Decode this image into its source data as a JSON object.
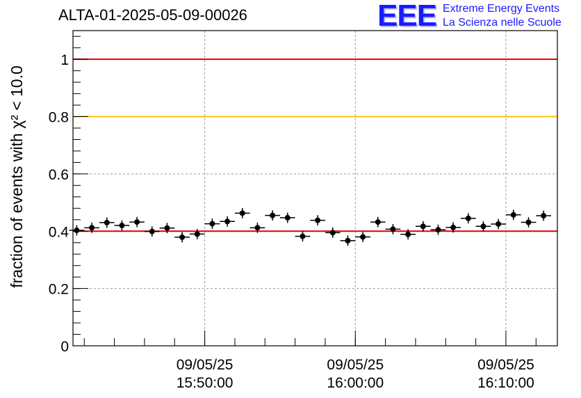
{
  "title": "ALTA-01-2025-05-09-00026",
  "logo": {
    "mark": "EEE",
    "line1": "Extreme Energy Events",
    "line2": "La Scienza nelle Scuole"
  },
  "chart_data": {
    "type": "scatter",
    "title": "ALTA-01-2025-05-09-00026",
    "ylabel": "fraction of events with χ² < 10.0",
    "ylim": [
      0,
      1.1
    ],
    "yticks": [
      0,
      0.2,
      0.4,
      0.6,
      0.8,
      1
    ],
    "ytick_labels": [
      "0",
      "0.2",
      "0.4",
      "0.6",
      "0.8",
      "1"
    ],
    "xlim": [
      "15:41:15",
      "16:13:25"
    ],
    "xtick_major": [
      "15:50:00",
      "16:00:00",
      "16:10:00"
    ],
    "xtick_labels": [
      {
        "date": "09/05/25",
        "time": "15:50:00"
      },
      {
        "date": "09/05/25",
        "time": "16:00:00"
      },
      {
        "date": "09/05/25",
        "time": "16:10:00"
      }
    ],
    "grid": true,
    "reference_lines": [
      {
        "y": 1.0,
        "color": "#e00000"
      },
      {
        "y": 0.8,
        "color": "#ffc400"
      },
      {
        "y": 0.4,
        "color": "#e00000"
      }
    ],
    "marker_color": "#000000",
    "bin_minutes": 1,
    "points": [
      {
        "t": "15:41:30",
        "y": 0.403
      },
      {
        "t": "15:42:30",
        "y": 0.412
      },
      {
        "t": "15:43:30",
        "y": 0.43
      },
      {
        "t": "15:44:30",
        "y": 0.42
      },
      {
        "t": "15:45:30",
        "y": 0.432
      },
      {
        "t": "15:46:30",
        "y": 0.399
      },
      {
        "t": "15:47:30",
        "y": 0.411
      },
      {
        "t": "15:48:30",
        "y": 0.379
      },
      {
        "t": "15:49:30",
        "y": 0.39
      },
      {
        "t": "15:50:30",
        "y": 0.426
      },
      {
        "t": "15:51:30",
        "y": 0.434
      },
      {
        "t": "15:52:30",
        "y": 0.463
      },
      {
        "t": "15:53:30",
        "y": 0.412
      },
      {
        "t": "15:54:30",
        "y": 0.455
      },
      {
        "t": "15:55:30",
        "y": 0.447
      },
      {
        "t": "15:56:30",
        "y": 0.382
      },
      {
        "t": "15:57:30",
        "y": 0.438
      },
      {
        "t": "15:58:30",
        "y": 0.395
      },
      {
        "t": "15:59:30",
        "y": 0.367
      },
      {
        "t": "16:00:30",
        "y": 0.38
      },
      {
        "t": "16:01:30",
        "y": 0.432
      },
      {
        "t": "16:02:30",
        "y": 0.407
      },
      {
        "t": "16:03:30",
        "y": 0.389
      },
      {
        "t": "16:04:30",
        "y": 0.417
      },
      {
        "t": "16:05:30",
        "y": 0.405
      },
      {
        "t": "16:06:30",
        "y": 0.413
      },
      {
        "t": "16:07:30",
        "y": 0.445
      },
      {
        "t": "16:08:30",
        "y": 0.417
      },
      {
        "t": "16:09:30",
        "y": 0.425
      },
      {
        "t": "16:10:30",
        "y": 0.457
      },
      {
        "t": "16:11:30",
        "y": 0.431
      },
      {
        "t": "16:12:30",
        "y": 0.454
      }
    ],
    "error": 0.018
  }
}
